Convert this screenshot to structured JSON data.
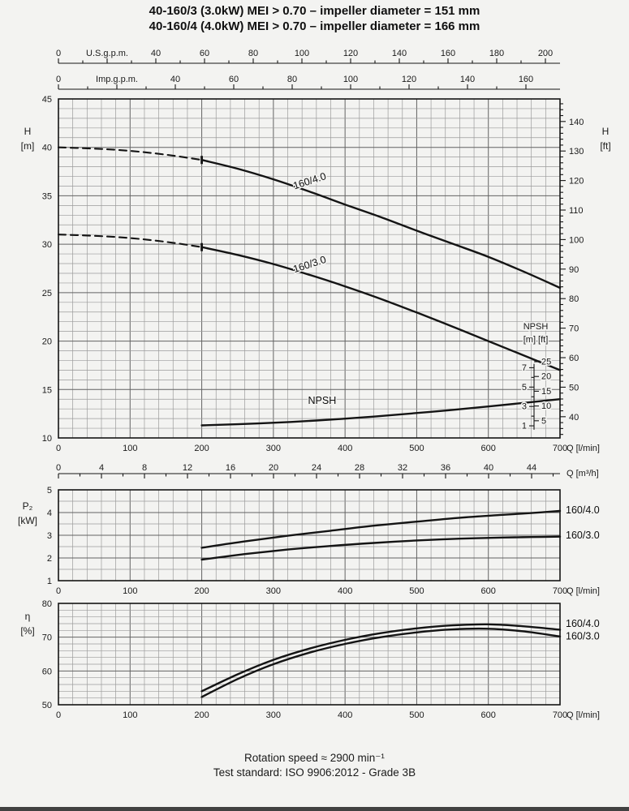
{
  "page": {
    "title_lines": [
      "40-160/3 (3.0kW) MEI > 0.70 – impeller diameter = 151 mm",
      "40-160/4 (4.0kW) MEI > 0.70 – impeller diameter = 166 mm"
    ],
    "footer_lines": [
      "Rotation speed ≈ 2900 min⁻¹",
      "Test standard: ISO 9906:2012 - Grade 3B"
    ]
  },
  "chart_data": {
    "type": "line",
    "title": "Pump performance curves 40-160",
    "x_axis": {
      "min": 0,
      "max": 700,
      "major": 100,
      "minor": 20,
      "unit_label": "Q [l/min]"
    },
    "top_axes": [
      {
        "name": "us-gpm",
        "title": "U.S.g.p.m.",
        "major": 20,
        "minor": 10,
        "tick_max": 200,
        "labels": [
          0,
          40,
          60,
          80,
          100,
          120,
          140,
          160,
          180,
          200
        ]
      },
      {
        "name": "imp-gpm",
        "title": "Imp.g.p.m.",
        "major": 20,
        "minor": 10,
        "tick_max": 160,
        "labels": [
          0,
          40,
          60,
          80,
          100,
          120,
          140,
          160
        ]
      }
    ],
    "m3h_axis": {
      "unit_label": "Q [m³/h]",
      "major": 4,
      "minor": 2,
      "tick_max": 46,
      "labels": [
        0,
        4,
        8,
        12,
        16,
        20,
        24,
        28,
        32,
        36,
        40,
        44
      ]
    },
    "panels": [
      {
        "name": "head",
        "y_axis": {
          "min": 10,
          "max": 45,
          "major": 5,
          "minor": 1,
          "title_lines": [
            "H",
            "[m]"
          ]
        },
        "right_axis": {
          "title_lines": [
            "H",
            "[ft]"
          ],
          "ft_min": 40,
          "ft_max": 140,
          "major": 10,
          "minor": 2,
          "m_per_ft": 0.3048
        },
        "series": [
          {
            "name": "160/4.0",
            "dash": [
              [
                0,
                40.0
              ],
              [
                40,
                39.9
              ],
              [
                80,
                39.75
              ],
              [
                120,
                39.5
              ],
              [
                160,
                39.15
              ],
              [
                200,
                38.7
              ]
            ],
            "solid": [
              [
                200,
                38.7
              ],
              [
                250,
                37.8
              ],
              [
                300,
                36.7
              ],
              [
                350,
                35.45
              ],
              [
                400,
                34.1
              ],
              [
                450,
                32.8
              ],
              [
                500,
                31.4
              ],
              [
                550,
                30.05
              ],
              [
                600,
                28.7
              ],
              [
                650,
                27.15
              ],
              [
                700,
                25.5
              ]
            ],
            "label": {
              "text": "160/4.0",
              "x": 352,
              "y": 36.2,
              "angle": -18
            }
          },
          {
            "name": "160/3.0",
            "dash": [
              [
                0,
                31.0
              ],
              [
                40,
                30.9
              ],
              [
                80,
                30.75
              ],
              [
                120,
                30.5
              ],
              [
                160,
                30.15
              ],
              [
                200,
                29.7
              ]
            ],
            "solid": [
              [
                200,
                29.7
              ],
              [
                250,
                28.9
              ],
              [
                300,
                27.95
              ],
              [
                350,
                26.85
              ],
              [
                400,
                25.65
              ],
              [
                450,
                24.35
              ],
              [
                500,
                22.95
              ],
              [
                550,
                21.5
              ],
              [
                600,
                20.0
              ],
              [
                650,
                18.5
              ],
              [
                700,
                17.0
              ]
            ],
            "label": {
              "text": "160/3.0",
              "x": 352,
              "y": 27.6,
              "angle": -18
            }
          },
          {
            "name": "NPSH",
            "solid": [
              [
                200,
                11.3
              ],
              [
                280,
                11.5
              ],
              [
                360,
                11.8
              ],
              [
                440,
                12.2
              ],
              [
                520,
                12.7
              ],
              [
                600,
                13.25
              ],
              [
                700,
                14.0
              ]
            ],
            "label": {
              "text": "NPSH",
              "x": 368,
              "y": 13.5,
              "angle": 0
            }
          }
        ],
        "start_markers": [
          [
            200,
            38.7
          ],
          [
            200,
            29.7
          ]
        ],
        "npsh_axis": {
          "header_lines": [
            "NPSH",
            "[m] [ft]"
          ],
          "m_ticks": [
            1,
            2,
            3,
            4,
            5,
            6,
            7
          ],
          "m_labels": [
            1,
            3,
            5,
            7
          ],
          "ft_ticks": [
            5,
            10,
            15,
            20,
            25
          ],
          "h_offset": 10.25,
          "h_per_m": 1.0,
          "m_per_ft": 0.3048
        }
      },
      {
        "name": "power",
        "y_axis": {
          "min": 1,
          "max": 5,
          "major": 1,
          "minor": 0.5,
          "title_lines": [
            "P₂",
            "[kW]"
          ]
        },
        "series": [
          {
            "name": "160/4.0",
            "solid": [
              [
                200,
                2.45
              ],
              [
                260,
                2.73
              ],
              [
                320,
                2.98
              ],
              [
                380,
                3.2
              ],
              [
                440,
                3.42
              ],
              [
                500,
                3.6
              ],
              [
                560,
                3.77
              ],
              [
                620,
                3.9
              ],
              [
                660,
                3.98
              ],
              [
                700,
                4.07
              ]
            ],
            "label": {
              "text": "160/4.0",
              "side": "right",
              "y": 4.1
            }
          },
          {
            "name": "160/3.0",
            "solid": [
              [
                200,
                1.93
              ],
              [
                260,
                2.17
              ],
              [
                320,
                2.37
              ],
              [
                380,
                2.53
              ],
              [
                440,
                2.66
              ],
              [
                500,
                2.77
              ],
              [
                560,
                2.85
              ],
              [
                620,
                2.9
              ],
              [
                660,
                2.92
              ],
              [
                700,
                2.94
              ]
            ],
            "label": {
              "text": "160/3.0",
              "side": "right",
              "y": 3.0
            }
          }
        ]
      },
      {
        "name": "efficiency",
        "y_axis": {
          "min": 50,
          "max": 80,
          "major": 10,
          "minor": 2,
          "title_lines": [
            "η",
            "[%]"
          ]
        },
        "series": [
          {
            "name": "160/4.0",
            "solid": [
              [
                200,
                54.0
              ],
              [
                250,
                59.0
              ],
              [
                300,
                63.3
              ],
              [
                350,
                66.6
              ],
              [
                400,
                69.2
              ],
              [
                450,
                71.2
              ],
              [
                500,
                72.6
              ],
              [
                550,
                73.5
              ],
              [
                600,
                73.8
              ],
              [
                650,
                73.2
              ],
              [
                700,
                72.2
              ]
            ],
            "label": {
              "text": "160/4.0",
              "side": "right",
              "y": 74.0
            }
          },
          {
            "name": "160/3.0",
            "solid": [
              [
                200,
                52.3
              ],
              [
                250,
                57.6
              ],
              [
                300,
                62.0
              ],
              [
                350,
                65.4
              ],
              [
                400,
                68.0
              ],
              [
                450,
                70.0
              ],
              [
                500,
                71.4
              ],
              [
                550,
                72.3
              ],
              [
                600,
                72.5
              ],
              [
                650,
                71.7
              ],
              [
                700,
                70.2
              ]
            ],
            "label": {
              "text": "160/3.0",
              "side": "right",
              "y": 70.3
            }
          }
        ]
      }
    ]
  }
}
